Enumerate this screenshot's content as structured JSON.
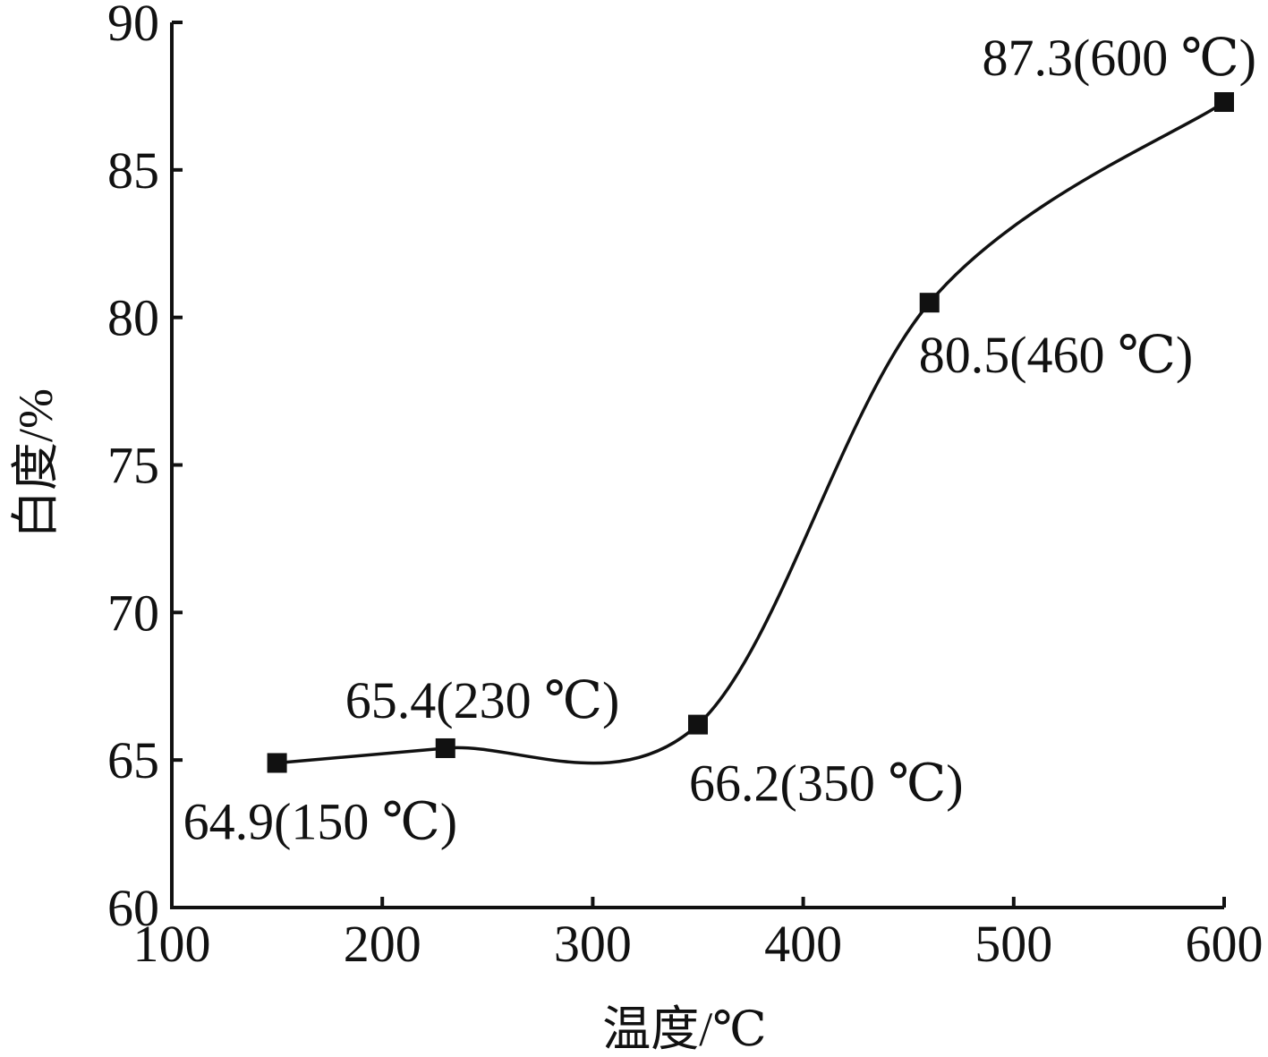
{
  "chart_data": {
    "type": "line",
    "xlabel": "温度/℃",
    "ylabel": "白度/%",
    "xlim": [
      100,
      600
    ],
    "ylim": [
      60,
      90
    ],
    "xticks": [
      100,
      200,
      300,
      400,
      500,
      600
    ],
    "yticks": [
      60,
      65,
      70,
      75,
      80,
      85,
      90
    ],
    "grid": false,
    "smooth": true,
    "marker": "square",
    "series": [
      {
        "x": [
          150,
          230,
          350,
          460,
          600
        ],
        "y": [
          64.9,
          65.4,
          66.2,
          80.5,
          87.3
        ]
      }
    ],
    "annotations": [
      {
        "text": "64.9(150 ℃)",
        "x": 150,
        "y": 64.9,
        "position": "below-right"
      },
      {
        "text": "65.4(230 ℃)",
        "x": 230,
        "y": 65.4,
        "position": "above"
      },
      {
        "text": "66.2(350 ℃)",
        "x": 350,
        "y": 66.2,
        "position": "below-right"
      },
      {
        "text": "80.5(460 ℃)",
        "x": 460,
        "y": 80.5,
        "position": "below-right"
      },
      {
        "text": "87.3(600 ℃)",
        "x": 600,
        "y": 87.3,
        "position": "above-left"
      }
    ]
  }
}
